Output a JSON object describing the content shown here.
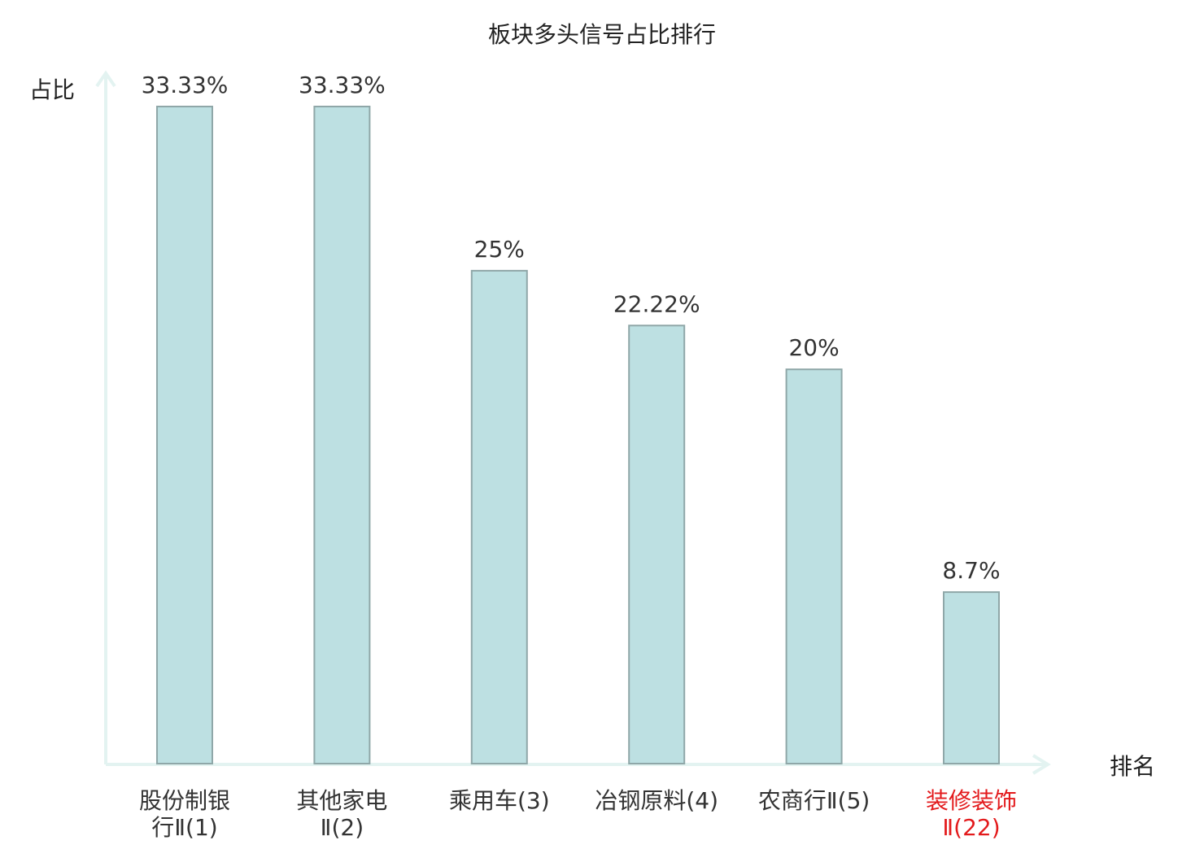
{
  "chart_data": {
    "type": "bar",
    "title": "板块多头信号占比排行",
    "xlabel": "排名",
    "ylabel": "占比",
    "categories": [
      {
        "lines": [
          "股份制银",
          "行Ⅱ(1)"
        ],
        "highlight": false
      },
      {
        "lines": [
          "其他家电",
          "Ⅱ(2)"
        ],
        "highlight": false
      },
      {
        "lines": [
          "乘用车(3)"
        ],
        "highlight": false
      },
      {
        "lines": [
          "冶钢原料(4)"
        ],
        "highlight": false
      },
      {
        "lines": [
          "农商行Ⅱ(5)"
        ],
        "highlight": false
      },
      {
        "lines": [
          "装修装饰",
          "Ⅱ(22)"
        ],
        "highlight": true
      }
    ],
    "values": [
      33.33,
      33.33,
      25,
      22.22,
      20,
      8.7
    ],
    "value_labels": [
      "33.33%",
      "33.33%",
      "25%",
      "22.22%",
      "20%",
      "8.7%"
    ],
    "ylim": [
      0,
      35
    ],
    "grid": false,
    "legend": "none",
    "colors": {
      "bar_fill": "#bde0e2",
      "bar_stroke": "#8fa7a8",
      "axis": "#e3f3f1",
      "label_text": "#333333",
      "highlight_text": "#e31a1c",
      "title_text": "#222222"
    }
  }
}
